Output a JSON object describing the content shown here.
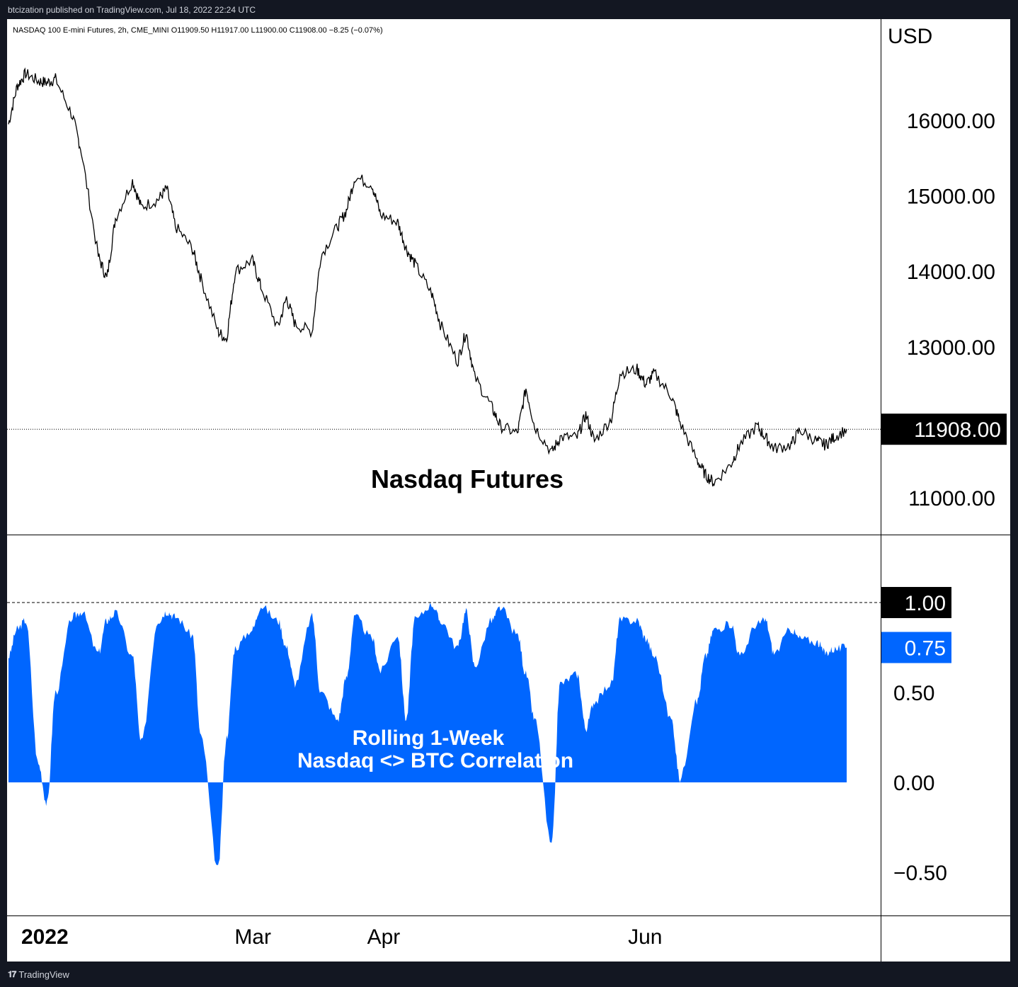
{
  "header": {
    "published": "btcization published on TradingView.com, Jul 18, 2022 22:24 UTC",
    "symbol_line": "NASDAQ 100 E-mini Futures, 2h, CME_MINI  O11909.50  H11917.00  L11900.00  C11908.00  −8.25 (−0.07%)"
  },
  "footer": {
    "brand": "TradingView",
    "logo_icon": "tradingview-logo-icon"
  },
  "colors": {
    "price_line": "#000000",
    "correlation_fill": "#0066ff",
    "last_price_badge": "#000000",
    "last_corr_badge": "#0066ff",
    "background_outer": "#131722"
  },
  "chart_data": [
    {
      "type": "line",
      "title": "Nasdaq Futures",
      "currency_label": "USD",
      "y_ticks": [
        "16000.00",
        "15000.00",
        "14000.00",
        "13000.00",
        "11000.00"
      ],
      "last_value_label": "11908.00",
      "last_value": 11908,
      "ylim": [
        10500,
        17200
      ],
      "series": [
        {
          "x": [
            "2022-01-03",
            "2022-01-05",
            "2022-01-07",
            "2022-01-10",
            "2022-01-12",
            "2022-01-14",
            "2022-01-18",
            "2022-01-20",
            "2022-01-24",
            "2022-01-26",
            "2022-01-28",
            "2022-02-01",
            "2022-02-03",
            "2022-02-07",
            "2022-02-09",
            "2022-02-11",
            "2022-02-15",
            "2022-02-17",
            "2022-02-21",
            "2022-02-23",
            "2022-02-25",
            "2022-03-01",
            "2022-03-03",
            "2022-03-07",
            "2022-03-09",
            "2022-03-11",
            "2022-03-15",
            "2022-03-17",
            "2022-03-21",
            "2022-03-23",
            "2022-03-25",
            "2022-03-29",
            "2022-03-31",
            "2022-04-04",
            "2022-04-06",
            "2022-04-08",
            "2022-04-12",
            "2022-04-14",
            "2022-04-18",
            "2022-04-20",
            "2022-04-22",
            "2022-04-26",
            "2022-04-28",
            "2022-05-02",
            "2022-05-04",
            "2022-05-06",
            "2022-05-10",
            "2022-05-12",
            "2022-05-16",
            "2022-05-18",
            "2022-05-20",
            "2022-05-24",
            "2022-05-26",
            "2022-05-30",
            "2022-06-01",
            "2022-06-03",
            "2022-06-07",
            "2022-06-09",
            "2022-06-13",
            "2022-06-15",
            "2022-06-17",
            "2022-06-21",
            "2022-06-23",
            "2022-06-27",
            "2022-06-29",
            "2022-07-01",
            "2022-07-05",
            "2022-07-07",
            "2022-07-11",
            "2022-07-13",
            "2022-07-15",
            "2022-07-18"
          ],
          "values": [
            15950,
            16450,
            16620,
            16520,
            16500,
            16550,
            16050,
            15600,
            14200,
            13900,
            14700,
            15200,
            14850,
            14950,
            15100,
            14600,
            14300,
            13900,
            13200,
            13100,
            14000,
            14150,
            13800,
            13250,
            13650,
            13300,
            13200,
            14200,
            14600,
            14800,
            15250,
            15150,
            14750,
            14650,
            14300,
            14100,
            13700,
            13300,
            12800,
            13200,
            12600,
            12200,
            11950,
            11850,
            12450,
            11950,
            11600,
            11800,
            11800,
            12100,
            11750,
            12050,
            12650,
            12700,
            12500,
            12650,
            12350,
            12000,
            11500,
            11300,
            11200,
            11450,
            11700,
            11950,
            11800,
            11650,
            11700,
            11900,
            11750,
            11700,
            11800,
            11908
          ]
        }
      ]
    },
    {
      "type": "area",
      "title": "Rolling 1-Week",
      "subtitle": "Nasdaq <> BTC Correlation",
      "y_ticks": [
        "1.00",
        "0.50",
        "0.00",
        "−0.50"
      ],
      "reference_line_label": "1.00",
      "reference_value": 1.0,
      "last_value_label": "0.75",
      "last_value": 0.75,
      "ylim": [
        -0.75,
        1.3
      ],
      "series": [
        {
          "x": [
            "2022-01-03",
            "2022-01-05",
            "2022-01-07",
            "2022-01-10",
            "2022-01-12",
            "2022-01-14",
            "2022-01-18",
            "2022-01-20",
            "2022-01-24",
            "2022-01-26",
            "2022-01-28",
            "2022-02-01",
            "2022-02-03",
            "2022-02-07",
            "2022-02-09",
            "2022-02-11",
            "2022-02-15",
            "2022-02-17",
            "2022-02-21",
            "2022-02-23",
            "2022-02-25",
            "2022-03-01",
            "2022-03-03",
            "2022-03-07",
            "2022-03-09",
            "2022-03-11",
            "2022-03-15",
            "2022-03-17",
            "2022-03-21",
            "2022-03-23",
            "2022-03-25",
            "2022-03-29",
            "2022-03-31",
            "2022-04-04",
            "2022-04-06",
            "2022-04-08",
            "2022-04-12",
            "2022-04-14",
            "2022-04-18",
            "2022-04-20",
            "2022-04-22",
            "2022-04-26",
            "2022-04-28",
            "2022-05-02",
            "2022-05-04",
            "2022-05-06",
            "2022-05-10",
            "2022-05-12",
            "2022-05-16",
            "2022-05-18",
            "2022-05-20",
            "2022-05-24",
            "2022-05-26",
            "2022-05-30",
            "2022-06-01",
            "2022-06-03",
            "2022-06-07",
            "2022-06-09",
            "2022-06-13",
            "2022-06-15",
            "2022-06-17",
            "2022-06-21",
            "2022-06-23",
            "2022-06-27",
            "2022-06-29",
            "2022-07-01",
            "2022-07-05",
            "2022-07-07",
            "2022-07-11",
            "2022-07-13",
            "2022-07-15",
            "2022-07-18"
          ],
          "values": [
            0.7,
            0.85,
            0.9,
            0.1,
            -0.12,
            0.5,
            0.92,
            0.95,
            0.72,
            0.9,
            0.94,
            0.7,
            0.22,
            0.9,
            0.95,
            0.92,
            0.82,
            0.25,
            -0.48,
            0.25,
            0.75,
            0.85,
            0.98,
            0.9,
            0.75,
            0.55,
            0.92,
            0.5,
            0.35,
            0.58,
            0.92,
            0.8,
            0.62,
            0.82,
            0.35,
            0.9,
            0.99,
            0.9,
            0.75,
            0.95,
            0.65,
            0.9,
            0.97,
            0.82,
            0.6,
            0.35,
            -0.35,
            0.55,
            0.6,
            0.3,
            0.45,
            0.55,
            0.9,
            0.9,
            0.8,
            0.7,
            0.35,
            0.02,
            0.45,
            0.7,
            0.85,
            0.88,
            0.7,
            0.88,
            0.9,
            0.72,
            0.85,
            0.8,
            0.78,
            0.72,
            0.74,
            0.75
          ]
        }
      ]
    }
  ],
  "x_axis": {
    "labels": [
      {
        "text": "2022",
        "date": "2022-01-01",
        "bold": true
      },
      {
        "text": "Mar",
        "date": "2022-03-01",
        "bold": false
      },
      {
        "text": "Apr",
        "date": "2022-04-01",
        "bold": false
      },
      {
        "text": "Jun",
        "date": "2022-06-01",
        "bold": false
      }
    ]
  }
}
